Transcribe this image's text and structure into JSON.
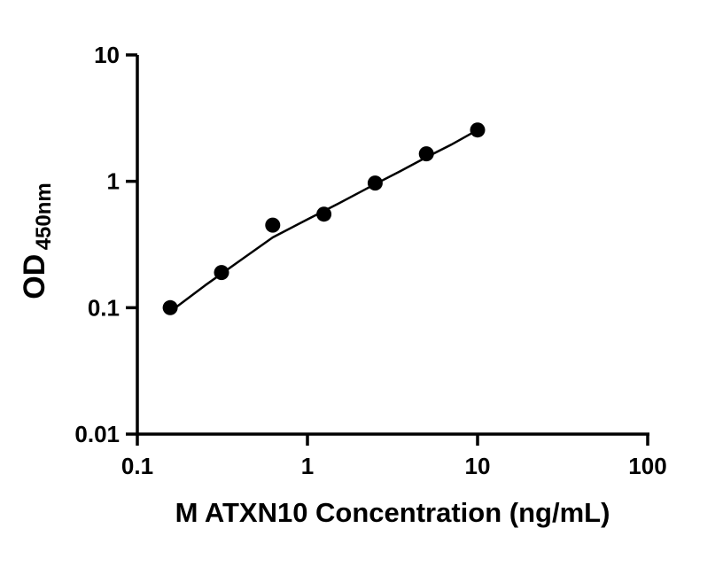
{
  "figure": {
    "background": "#ffffff"
  },
  "chart_data": {
    "type": "scatter",
    "title": "",
    "xlabel": "M ATXN10 Concentration (ng/mL)",
    "ylabel": "OD",
    "ylabel_subscript": "450nm",
    "x_scale": "log",
    "y_scale": "log",
    "xlim": [
      0.1,
      100
    ],
    "ylim": [
      0.01,
      10
    ],
    "x_tick_labels": [
      "0.1",
      "1",
      "10",
      "100"
    ],
    "x_tick_values": [
      0.1,
      1,
      10,
      100
    ],
    "y_tick_labels": [
      "10",
      "1",
      "0.1",
      "0.01"
    ],
    "y_tick_values": [
      10,
      1,
      0.1,
      0.01
    ],
    "grid": false,
    "legend_position": "none",
    "point_color": "#000000",
    "line_color": "#000000",
    "axis_color": "#000000",
    "points": [
      {
        "x": 0.156,
        "y": 0.1
      },
      {
        "x": 0.3125,
        "y": 0.19
      },
      {
        "x": 0.625,
        "y": 0.45
      },
      {
        "x": 1.25,
        "y": 0.55
      },
      {
        "x": 2.5,
        "y": 0.97
      },
      {
        "x": 5,
        "y": 1.65
      },
      {
        "x": 10,
        "y": 2.55
      }
    ],
    "fit_line": [
      [
        0.156,
        0.093
      ],
      [
        0.25,
        0.15
      ],
      [
        0.4,
        0.235
      ],
      [
        0.625,
        0.36
      ],
      [
        1.0,
        0.5
      ],
      [
        1.5,
        0.66
      ],
      [
        2.0,
        0.81
      ],
      [
        2.5,
        0.95
      ],
      [
        3.5,
        1.2
      ],
      [
        5.0,
        1.55
      ],
      [
        7.0,
        1.95
      ],
      [
        10.0,
        2.55
      ]
    ]
  }
}
